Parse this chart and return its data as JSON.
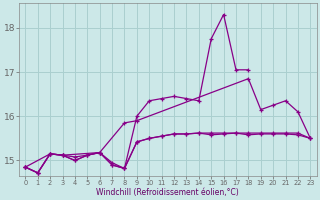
{
  "xlabel": "Windchill (Refroidissement éolien,°C)",
  "bg_color": "#cce8e8",
  "grid_color": "#aacfcf",
  "line_color": "#880088",
  "xlim": [
    -0.5,
    23.5
  ],
  "ylim": [
    14.65,
    18.55
  ],
  "yticks": [
    15,
    16,
    17,
    18
  ],
  "xticks": [
    0,
    1,
    2,
    3,
    4,
    5,
    6,
    7,
    8,
    9,
    10,
    11,
    12,
    13,
    14,
    15,
    16,
    17,
    18,
    19,
    20,
    21,
    22,
    23
  ],
  "series": [
    {
      "x": [
        0,
        1,
        2,
        3,
        4,
        5,
        6,
        7,
        8,
        9,
        10,
        11,
        12,
        13,
        14,
        15,
        16,
        17,
        18,
        19,
        20,
        21,
        22,
        23
      ],
      "y": [
        14.85,
        14.72,
        15.15,
        15.12,
        15.08,
        15.12,
        15.18,
        14.95,
        14.82,
        15.42,
        15.5,
        15.55,
        15.6,
        15.6,
        15.62,
        15.58,
        15.6,
        15.62,
        15.58,
        15.6,
        15.6,
        15.6,
        15.58,
        15.5
      ]
    },
    {
      "x": [
        0,
        1,
        2,
        3,
        4,
        5,
        6,
        7,
        8,
        9,
        10,
        11,
        12,
        13,
        14,
        15,
        16,
        17,
        18
      ],
      "y": [
        14.85,
        14.72,
        15.15,
        15.12,
        15.0,
        15.12,
        15.18,
        14.9,
        14.82,
        16.0,
        16.35,
        16.4,
        16.45,
        16.4,
        16.35,
        17.75,
        18.3,
        17.05,
        17.05
      ]
    },
    {
      "x": [
        0,
        2,
        3,
        6,
        8,
        9,
        18,
        19,
        20,
        21,
        22,
        23
      ],
      "y": [
        14.85,
        15.15,
        15.12,
        15.18,
        15.85,
        15.9,
        16.85,
        16.15,
        16.25,
        16.35,
        16.1,
        15.5
      ]
    },
    {
      "x": [
        0,
        1,
        2,
        3,
        4,
        5,
        6,
        7,
        8,
        9,
        10,
        11,
        12,
        13,
        14,
        15,
        16,
        17,
        18,
        19,
        20,
        21,
        22,
        23
      ],
      "y": [
        14.85,
        14.72,
        15.15,
        15.12,
        15.0,
        15.12,
        15.18,
        14.9,
        14.82,
        15.42,
        15.5,
        15.55,
        15.6,
        15.6,
        15.62,
        15.62,
        15.62,
        15.62,
        15.62,
        15.62,
        15.62,
        15.62,
        15.62,
        15.5
      ]
    }
  ]
}
